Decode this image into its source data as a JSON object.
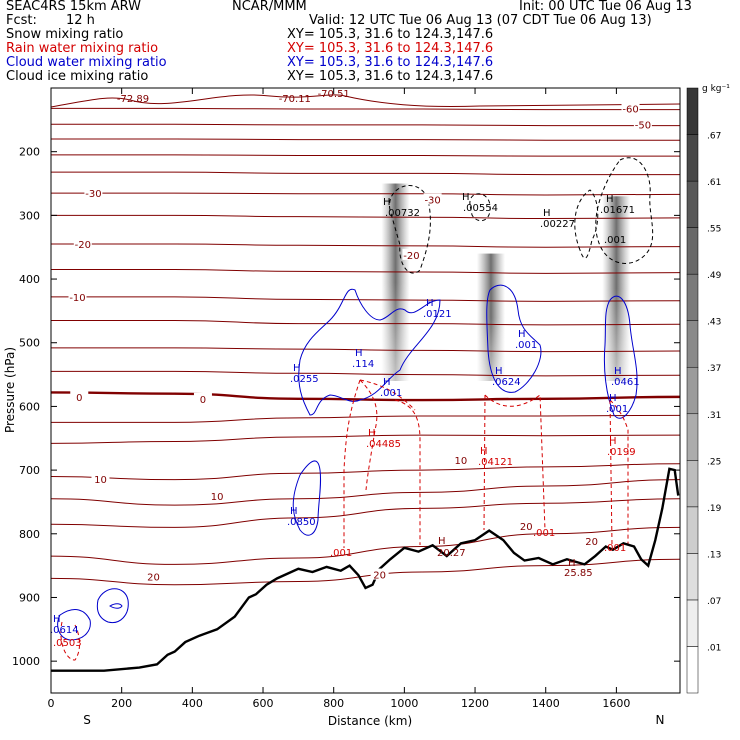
{
  "header": {
    "model": "SEAC4RS 15km ARW",
    "center": "NCAR/MMM",
    "init": "Init: 00 UTC Tue 06 Aug 13",
    "fcst_label": "Fcst:",
    "fcst_value": "12 h",
    "valid": "Valid: 12 UTC Tue 06 Aug 13 (07 CDT Tue 06 Aug 13)",
    "fields": [
      {
        "name": "Snow mixing ratio",
        "color": "#000000",
        "xy": "XY= 105.3, 31.6 to 124.3,147.6"
      },
      {
        "name": "Rain water mixing ratio",
        "color": "#d40000",
        "xy": "XY= 105.3, 31.6 to 124.3,147.6"
      },
      {
        "name": "Cloud water mixing ratio",
        "color": "#0000cc",
        "xy": "XY= 105.3, 31.6 to 124.3,147.6"
      },
      {
        "name": "Cloud ice mixing ratio",
        "color": "#000000",
        "xy": "XY= 105.3, 31.6 to 124.3,147.6"
      }
    ]
  },
  "chart_data": {
    "type": "cross-section",
    "xlabel": "Distance (km)",
    "ylabel": "Pressure (hPa)",
    "xlim": [
      0,
      1780
    ],
    "ylim": [
      1050,
      100
    ],
    "x_ticks": [
      0,
      200,
      400,
      600,
      800,
      1000,
      1200,
      1400,
      1600
    ],
    "y_ticks": [
      200,
      300,
      400,
      500,
      600,
      700,
      800,
      900,
      1000
    ],
    "left_end": "S",
    "right_end": "N",
    "colorbar_unit": "g kg⁻¹",
    "colorbar_ticks": [
      ".01",
      ".07",
      ".13",
      ".19",
      ".25",
      ".31",
      ".37",
      ".43",
      ".49",
      ".55",
      ".61",
      ".67"
    ],
    "terrain": [
      [
        0,
        1015
      ],
      [
        150,
        1015
      ],
      [
        250,
        1010
      ],
      [
        300,
        1005
      ],
      [
        330,
        990
      ],
      [
        350,
        985
      ],
      [
        380,
        970
      ],
      [
        420,
        960
      ],
      [
        470,
        950
      ],
      [
        520,
        930
      ],
      [
        560,
        900
      ],
      [
        580,
        895
      ],
      [
        610,
        880
      ],
      [
        640,
        870
      ],
      [
        700,
        855
      ],
      [
        740,
        860
      ],
      [
        780,
        852
      ],
      [
        820,
        858
      ],
      [
        845,
        850
      ],
      [
        870,
        865
      ],
      [
        890,
        885
      ],
      [
        910,
        880
      ],
      [
        930,
        855
      ],
      [
        960,
        840
      ],
      [
        1000,
        822
      ],
      [
        1040,
        828
      ],
      [
        1080,
        818
      ],
      [
        1120,
        835
      ],
      [
        1160,
        815
      ],
      [
        1200,
        810
      ],
      [
        1240,
        795
      ],
      [
        1280,
        810
      ],
      [
        1310,
        830
      ],
      [
        1340,
        842
      ],
      [
        1380,
        838
      ],
      [
        1420,
        848
      ],
      [
        1460,
        840
      ],
      [
        1510,
        848
      ],
      [
        1540,
        835
      ],
      [
        1570,
        820
      ],
      [
        1590,
        825
      ],
      [
        1620,
        815
      ],
      [
        1650,
        820
      ],
      [
        1670,
        840
      ],
      [
        1690,
        850
      ],
      [
        1710,
        810
      ],
      [
        1730,
        760
      ],
      [
        1750,
        698
      ],
      [
        1765,
        700
      ],
      [
        1775,
        740
      ]
    ],
    "temperature_contours": [
      {
        "label": "-60",
        "p": [
          132,
          132,
          133,
          133,
          134,
          134
        ]
      },
      {
        "label": "-50",
        "p": [
          157,
          157,
          158,
          158,
          159,
          159
        ]
      },
      {
        "label": "",
        "p": [
          180,
          180,
          181,
          181,
          182,
          182
        ]
      },
      {
        "label": "",
        "p": [
          205,
          205,
          206,
          206,
          207,
          207
        ]
      },
      {
        "label": "",
        "p": [
          232,
          232,
          234,
          234,
          236,
          236
        ]
      },
      {
        "label": "-30",
        "p": [
          265,
          265,
          266,
          266,
          268,
          267
        ]
      },
      {
        "label": "",
        "p": [
          300,
          300,
          302,
          303,
          305,
          304
        ]
      },
      {
        "label": "-20",
        "p": [
          345,
          345,
          347,
          348,
          350,
          349
        ]
      },
      {
        "label": "",
        "p": [
          385,
          385,
          388,
          389,
          391,
          390
        ]
      },
      {
        "label": "-10",
        "p": [
          428,
          428,
          432,
          433,
          435,
          434
        ]
      },
      {
        "label": "",
        "p": [
          465,
          465,
          470,
          470,
          472,
          471
        ]
      },
      {
        "label": "",
        "p": [
          508,
          508,
          510,
          512,
          514,
          513
        ]
      },
      {
        "label": "",
        "p": [
          545,
          545,
          548,
          550,
          552,
          551
        ]
      },
      {
        "label": "0",
        "p": [
          578,
          580,
          588,
          590,
          588,
          585
        ],
        "bold": true
      },
      {
        "label": "",
        "p": [
          625,
          625,
          618,
          615,
          615,
          614
        ]
      },
      {
        "label": "",
        "p": [
          658,
          655,
          648,
          645,
          646,
          645
        ]
      },
      {
        "label": "10",
        "p": [
          710,
          715,
          705,
          700,
          695,
          690
        ]
      },
      {
        "label": "10",
        "p": [
          745,
          755,
          745,
          735,
          725,
          715
        ]
      },
      {
        "label": "",
        "p": [
          785,
          790,
          775,
          760,
          752,
          745
        ]
      },
      {
        "label": "20",
        "p": [
          835,
          848,
          838,
          820,
          800,
          790
        ]
      },
      {
        "label": "20",
        "p": [
          870,
          880,
          875,
          860,
          850,
          840
        ]
      }
    ],
    "contour_x": [
      0,
      350,
      700,
      1050,
      1400,
      1780
    ],
    "temperature_labels": [
      "-72.89",
      "-70.11",
      "-70.51"
    ],
    "snow_maxima": [
      ".00732",
      ".00554",
      ".00227",
      ".01671"
    ],
    "cloud_ice_maxima": [
      ".001"
    ],
    "cloud_water_maxima": [
      ".0121",
      ".114",
      ".0255",
      ".001",
      ".0624",
      ".0461",
      ".0850",
      ".001",
      ".001",
      ".0614"
    ],
    "rain_water_maxima": [
      ".04485",
      ".04121",
      ".0199",
      ".001",
      ".001",
      ".001",
      ".0503"
    ],
    "temperature_maxima": [
      "20.27",
      "25.85"
    ]
  }
}
